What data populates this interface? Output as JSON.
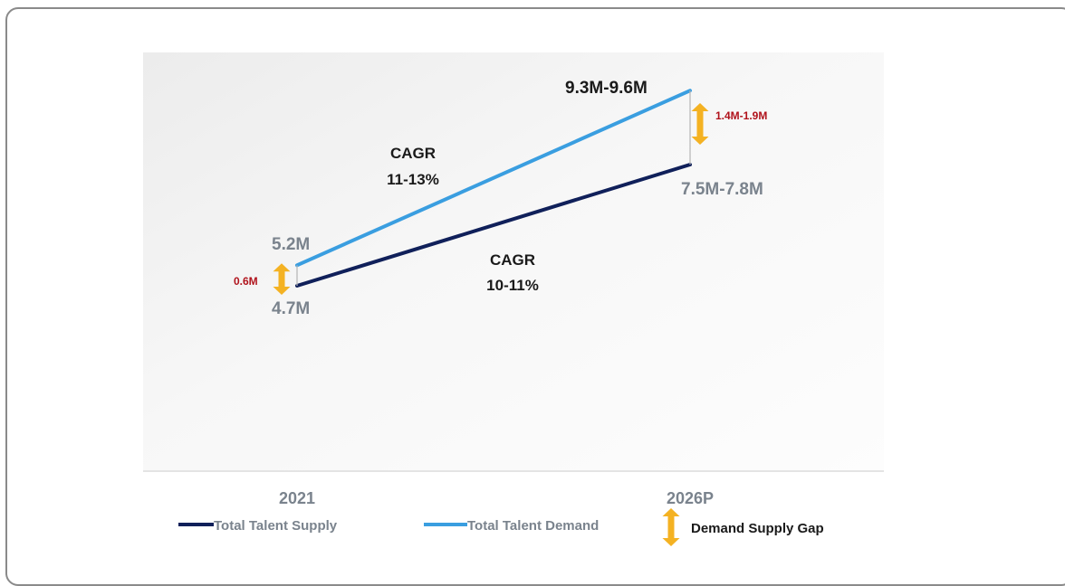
{
  "chart_data": {
    "type": "line",
    "categories": [
      "2021",
      "2026P"
    ],
    "series": [
      {
        "name": "Total Talent Supply",
        "values": [
          4.7,
          7.65
        ],
        "color": "#10205a",
        "start_label": "4.7M",
        "end_label": "7.5M-7.8M"
      },
      {
        "name": "Total Talent Demand",
        "values": [
          5.2,
          9.45
        ],
        "color": "#3a9ee0",
        "start_label": "5.2M",
        "end_label": "9.3M-9.6M"
      }
    ],
    "gaps": [
      {
        "label": "0.6M",
        "at": "2021"
      },
      {
        "label": "1.4M-1.9M",
        "at": "2026P"
      }
    ],
    "annotations": [
      {
        "line1": "CAGR",
        "line2": "11-13%",
        "series": "Total Talent Demand"
      },
      {
        "line1": "CAGR",
        "line2": "10-11%",
        "series": "Total Talent Supply"
      }
    ],
    "legend": {
      "placement": "bottom",
      "supply": "Total Talent Supply",
      "demand": "Total Talent Demand",
      "gap": "Demand Supply Gap"
    },
    "gap_color": "#f4b223",
    "ylim": [
      3.5,
      10
    ]
  }
}
